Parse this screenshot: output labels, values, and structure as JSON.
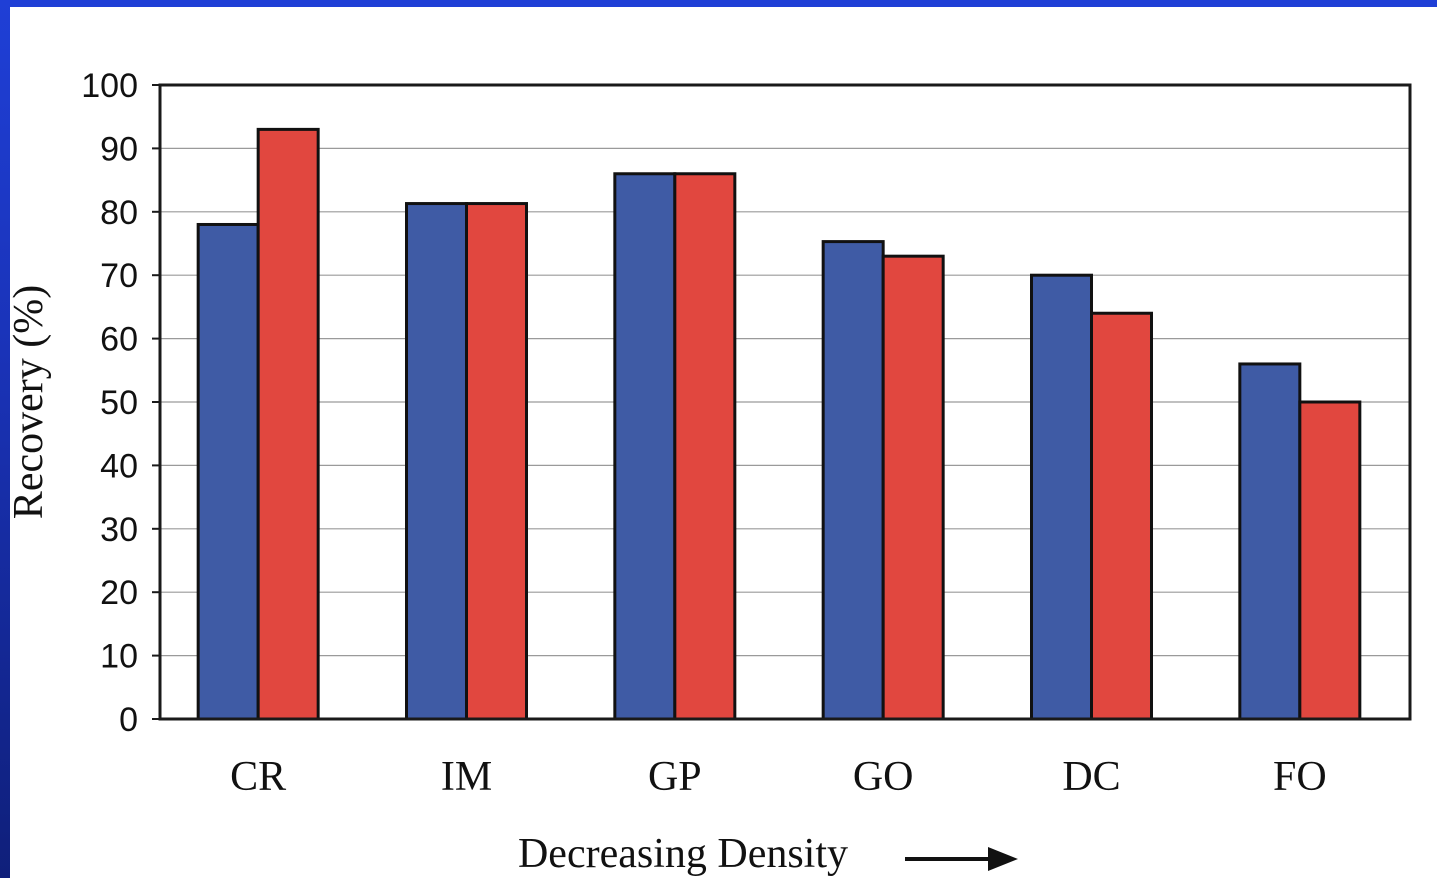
{
  "chart_data": {
    "type": "bar",
    "categories": [
      "CR",
      "IM",
      "GP",
      "GO",
      "DC",
      "FO"
    ],
    "series": [
      {
        "values": [
          78,
          81.3,
          86,
          75.3,
          70,
          56
        ],
        "color": "#3f5ba5"
      },
      {
        "values": [
          93,
          81.3,
          86,
          73,
          64,
          50
        ],
        "color": "#e1473f"
      }
    ],
    "ylim": [
      0,
      100
    ],
    "yticks": [
      0,
      10,
      20,
      30,
      40,
      50,
      60,
      70,
      80,
      90,
      100
    ],
    "ylabel": "Recovery (%)",
    "xlabel": "Decreasing Density",
    "grid": true,
    "legend": false,
    "xlabel_arrow": "right-arrow"
  }
}
